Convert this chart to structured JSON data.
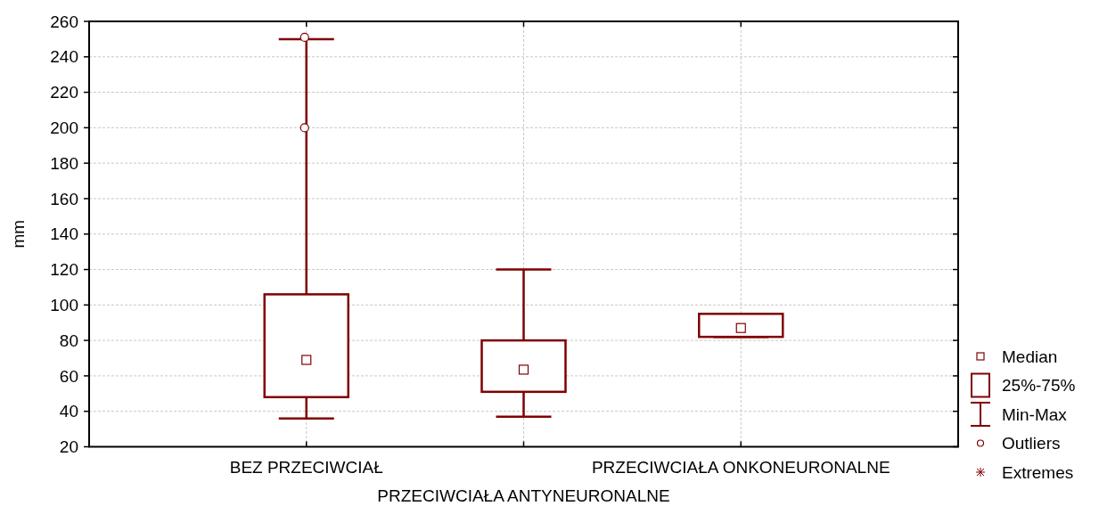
{
  "chart_data": {
    "type": "box",
    "xlabel": "PRZECIWCIAŁA ANTYNEURONALNE",
    "ylabel": "mm",
    "categories": [
      "BEZ PRZECIWCIAŁ",
      null,
      "PRZECIWCIAŁA ONKONEURONALNE"
    ],
    "color": "#800000",
    "boxes": [
      {
        "low": 36,
        "q1": 48,
        "median": 69,
        "q3": 106,
        "high": 250,
        "outliers": [
          251,
          200
        ]
      },
      {
        "low": 37,
        "q1": 51,
        "median": 63.5,
        "q3": 80,
        "high": 120
      },
      {
        "low": 82,
        "q1": 82,
        "median": 87,
        "q3": 95,
        "high": 95
      }
    ],
    "ylim": [
      20,
      260
    ],
    "yticks": [
      20,
      40,
      60,
      80,
      100,
      120,
      140,
      160,
      180,
      200,
      220,
      240,
      260
    ],
    "grid": true,
    "annotations": [
      "Median",
      "25%-75%",
      "Min-Max",
      "Outliers",
      "Extremes"
    ]
  }
}
